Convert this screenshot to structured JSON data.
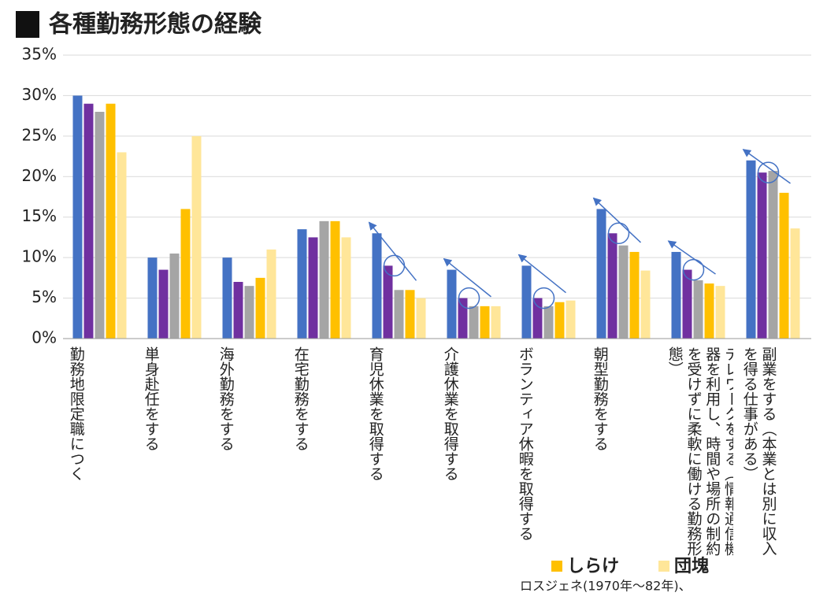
{
  "chart_data": {
    "type": "bar",
    "title": "各種勤務形態の経験",
    "categories": [
      "勤務地限定職につく",
      "単身赴任をする",
      "海外勤務をする",
      "在宅勤務をする",
      "育児休業を取得する",
      "介護休業を取得する",
      "ボランティア休暇を取得する",
      "朝型勤務をする",
      "テレワークをする（情報通信機器を利用し、時間や場所の制約を受けずに柔軟に働ける勤務形態）",
      "副業をする（本業とは別に収入を得る仕事がある）"
    ],
    "series": [
      {
        "color": "#4472c4",
        "values": [
          30,
          10,
          10,
          13.5,
          13,
          8.5,
          9,
          16,
          10.7,
          22
        ]
      },
      {
        "color": "#7030a0",
        "values": [
          29,
          8.5,
          7,
          12.5,
          9,
          5,
          5,
          13,
          8.5,
          20.5
        ]
      },
      {
        "color": "#a5a5a5",
        "values": [
          28,
          10.5,
          6.5,
          14.5,
          6,
          4,
          4,
          11.5,
          7.2,
          20.7
        ]
      },
      {
        "name": "しらけ",
        "color": "#ffc000",
        "values": [
          29,
          16,
          7.5,
          14.5,
          6,
          4,
          4.5,
          10.7,
          6.8,
          18
        ]
      },
      {
        "name": "団塊",
        "color": "#ffe699",
        "values": [
          23,
          25,
          11,
          12.5,
          5,
          4,
          4.7,
          8.4,
          6.5,
          13.6
        ]
      }
    ],
    "ylim": [
      0,
      35
    ],
    "yticks": [
      {
        "value": 0,
        "label": "0%"
      },
      {
        "value": 5,
        "label": "5%"
      },
      {
        "value": 10,
        "label": "10%"
      },
      {
        "value": 15,
        "label": "15%"
      },
      {
        "value": 20,
        "label": "20%"
      },
      {
        "value": 25,
        "label": "25%"
      },
      {
        "value": 30,
        "label": "30%"
      },
      {
        "value": 35,
        "label": "35%"
      }
    ],
    "grid": true,
    "footnote": "ロスジェネ(1970年〜82年)、"
  }
}
